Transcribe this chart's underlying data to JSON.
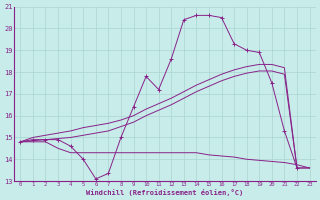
{
  "xlabel": "Windchill (Refroidissement éolien,°C)",
  "bg_color": "#c8ecea",
  "grid_color": "#aad4d0",
  "line_color": "#882288",
  "x_values": [
    0,
    1,
    2,
    3,
    4,
    5,
    6,
    7,
    8,
    9,
    10,
    11,
    12,
    13,
    14,
    15,
    16,
    17,
    18,
    19,
    20,
    21,
    22,
    23
  ],
  "main_y": [
    14.8,
    14.9,
    14.9,
    14.9,
    14.6,
    14.0,
    13.1,
    13.35,
    15.0,
    16.4,
    17.8,
    17.2,
    18.6,
    20.4,
    20.6,
    20.6,
    20.5,
    19.3,
    19.0,
    18.9,
    17.5,
    15.3,
    13.6,
    null
  ],
  "line2_y": [
    14.8,
    15.0,
    15.1,
    15.2,
    15.3,
    15.45,
    15.55,
    15.65,
    15.8,
    16.0,
    16.3,
    16.55,
    16.8,
    17.1,
    17.4,
    17.65,
    17.9,
    18.1,
    18.25,
    18.35,
    18.35,
    18.2,
    13.6,
    13.6
  ],
  "line3_y": [
    14.8,
    14.85,
    14.9,
    14.95,
    15.0,
    15.1,
    15.2,
    15.3,
    15.5,
    15.7,
    16.0,
    16.25,
    16.5,
    16.8,
    17.1,
    17.35,
    17.6,
    17.8,
    17.95,
    18.05,
    18.05,
    17.9,
    13.6,
    13.6
  ],
  "flat_y": [
    14.8,
    14.8,
    14.8,
    14.5,
    14.3,
    14.3,
    14.3,
    14.3,
    14.3,
    14.3,
    14.3,
    14.3,
    14.3,
    14.3,
    14.3,
    14.2,
    14.15,
    14.1,
    14.0,
    13.95,
    13.9,
    13.85,
    13.75,
    13.6
  ],
  "ylim": [
    13,
    21
  ],
  "xlim": [
    -0.5,
    23.5
  ],
  "yticks": [
    13,
    14,
    15,
    16,
    17,
    18,
    19,
    20,
    21
  ],
  "xticks": [
    0,
    1,
    2,
    3,
    4,
    5,
    6,
    7,
    8,
    9,
    10,
    11,
    12,
    13,
    14,
    15,
    16,
    17,
    18,
    19,
    20,
    21,
    22,
    23
  ]
}
